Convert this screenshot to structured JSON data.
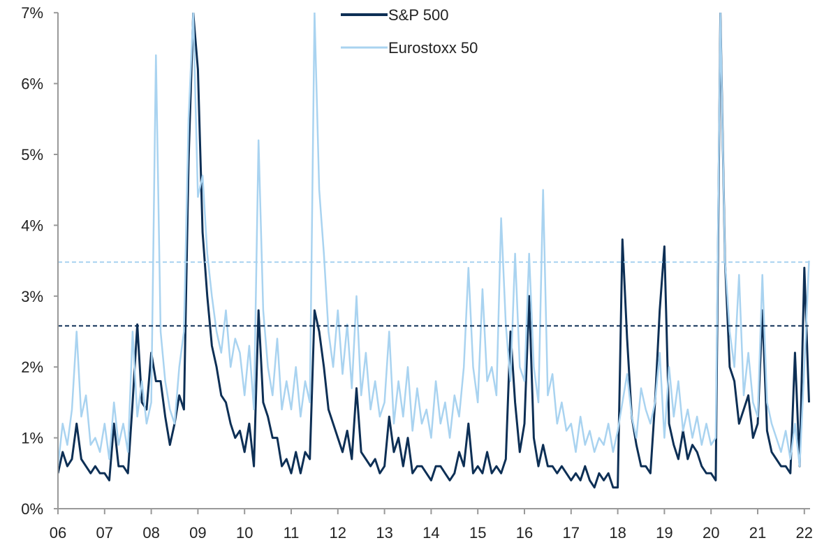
{
  "chart_data": {
    "type": "line",
    "title": "",
    "xlabel": "",
    "ylabel": "",
    "ylim": [
      0,
      7
    ],
    "xlim": [
      2006,
      2022.1
    ],
    "y_ticks": [
      0,
      1,
      2,
      3,
      4,
      5,
      6,
      7
    ],
    "y_tick_labels": [
      "0%",
      "1%",
      "2%",
      "3%",
      "4%",
      "5%",
      "6%",
      "7%"
    ],
    "x_ticks": [
      2006,
      2007,
      2008,
      2009,
      2010,
      2011,
      2012,
      2013,
      2014,
      2015,
      2016,
      2017,
      2018,
      2019,
      2020,
      2021,
      2022
    ],
    "x_tick_labels": [
      "06",
      "07",
      "08",
      "09",
      "10",
      "11",
      "12",
      "13",
      "14",
      "15",
      "16",
      "17",
      "18",
      "19",
      "20",
      "21",
      "22"
    ],
    "grid": false,
    "legend_position": "top-center",
    "x_start": 2006,
    "x_step": 0.1,
    "series": [
      {
        "name": "S&P 500",
        "color": "#0d2f55",
        "values": [
          0.5,
          0.8,
          0.6,
          0.7,
          1.2,
          0.7,
          0.6,
          0.5,
          0.6,
          0.5,
          0.5,
          0.4,
          1.2,
          0.6,
          0.6,
          0.5,
          1.5,
          2.6,
          1.5,
          1.4,
          2.2,
          1.8,
          1.8,
          1.3,
          0.9,
          1.2,
          1.6,
          1.4,
          4.9,
          7.0,
          6.2,
          3.9,
          3.0,
          2.3,
          2.0,
          1.6,
          1.5,
          1.2,
          1.0,
          1.1,
          0.8,
          1.2,
          0.6,
          2.8,
          1.5,
          1.3,
          1.0,
          1.0,
          0.6,
          0.7,
          0.5,
          0.8,
          0.5,
          0.8,
          0.7,
          2.8,
          2.5,
          2.0,
          1.4,
          1.2,
          1.0,
          0.8,
          1.1,
          0.7,
          1.7,
          0.8,
          0.7,
          0.6,
          0.7,
          0.5,
          0.6,
          1.3,
          0.8,
          1.0,
          0.6,
          1.0,
          0.5,
          0.6,
          0.6,
          0.5,
          0.4,
          0.6,
          0.6,
          0.5,
          0.4,
          0.5,
          0.8,
          0.6,
          1.2,
          0.5,
          0.6,
          0.5,
          0.8,
          0.5,
          0.6,
          0.5,
          0.7,
          2.5,
          1.5,
          0.8,
          1.2,
          3.0,
          1.0,
          0.6,
          0.9,
          0.6,
          0.6,
          0.5,
          0.6,
          0.5,
          0.4,
          0.5,
          0.4,
          0.6,
          0.4,
          0.3,
          0.5,
          0.4,
          0.5,
          0.3,
          0.3,
          3.8,
          2.4,
          1.3,
          0.9,
          0.6,
          0.6,
          0.5,
          1.5,
          2.8,
          3.7,
          1.2,
          0.9,
          0.7,
          1.1,
          0.7,
          0.9,
          0.8,
          0.6,
          0.5,
          0.5,
          0.4,
          7.0,
          3.5,
          2.0,
          1.8,
          1.2,
          1.4,
          1.6,
          1.0,
          1.2,
          2.8,
          1.1,
          0.8,
          0.7,
          0.6,
          0.6,
          0.5,
          2.2,
          0.6,
          3.4,
          1.5
        ]
      },
      {
        "name": "Eurostoxx 50",
        "color": "#a9d3f0",
        "values": [
          0.6,
          1.2,
          0.9,
          1.4,
          2.5,
          1.3,
          1.6,
          0.9,
          1.0,
          0.8,
          1.2,
          0.7,
          1.5,
          0.9,
          1.2,
          0.8,
          2.5,
          1.3,
          1.8,
          1.2,
          1.5,
          6.4,
          2.5,
          1.8,
          1.4,
          1.2,
          2.0,
          2.5,
          5.5,
          7.0,
          4.4,
          4.7,
          3.6,
          3.0,
          2.5,
          2.2,
          2.8,
          2.0,
          2.4,
          2.2,
          1.6,
          2.3,
          1.4,
          5.2,
          2.8,
          2.0,
          1.6,
          2.4,
          1.4,
          1.8,
          1.4,
          2.0,
          1.3,
          1.8,
          1.5,
          7.0,
          4.5,
          3.6,
          2.5,
          2.0,
          2.8,
          1.9,
          2.6,
          1.7,
          3.0,
          1.6,
          2.2,
          1.4,
          1.8,
          1.3,
          1.5,
          2.5,
          1.2,
          1.8,
          1.3,
          2.0,
          1.1,
          1.7,
          1.2,
          1.4,
          1.0,
          1.8,
          1.2,
          1.5,
          1.0,
          1.6,
          1.3,
          2.0,
          3.4,
          2.0,
          1.5,
          3.1,
          1.8,
          2.0,
          1.6,
          4.1,
          2.6,
          1.8,
          3.6,
          2.0,
          1.8,
          3.6,
          2.0,
          1.5,
          4.5,
          1.6,
          1.9,
          1.2,
          1.5,
          1.1,
          1.2,
          0.8,
          1.3,
          0.9,
          1.1,
          0.8,
          1.0,
          0.9,
          1.2,
          0.8,
          1.1,
          1.5,
          1.9,
          1.3,
          1.0,
          1.7,
          1.4,
          1.2,
          1.5,
          2.2,
          1.0,
          2.0,
          1.3,
          1.8,
          1.1,
          1.4,
          1.0,
          1.3,
          0.9,
          1.2,
          0.9,
          1.0,
          7.0,
          3.5,
          2.5,
          2.0,
          3.3,
          1.6,
          2.2,
          1.5,
          1.3,
          3.3,
          1.5,
          1.2,
          1.0,
          0.8,
          1.1,
          0.7,
          1.2,
          0.6,
          2.0,
          3.5
        ]
      }
    ],
    "reference_lines": [
      {
        "series": "Eurostoxx 50",
        "value": 3.48,
        "style": "dashed",
        "color": "#a9d3f0"
      },
      {
        "series": "S&P 500",
        "value": 2.58,
        "style": "dashed",
        "color": "#0d2f55"
      }
    ]
  }
}
